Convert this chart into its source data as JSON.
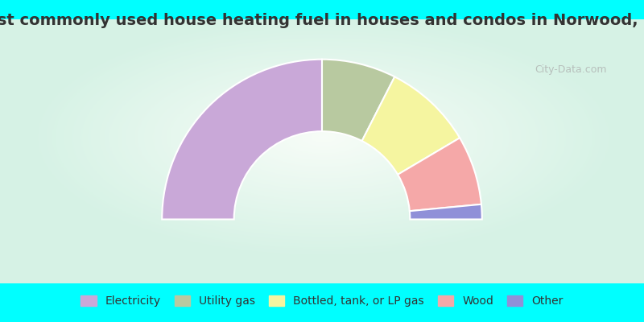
{
  "title": "Most commonly used house heating fuel in houses and condos in Norwood, MO",
  "segments": [
    {
      "label": "Electricity",
      "value": 50.0,
      "color": "#C9A8D8"
    },
    {
      "label": "Utility gas",
      "value": 15.0,
      "color": "#B8C9A0"
    },
    {
      "label": "Bottled, tank, or LP gas",
      "value": 18.0,
      "color": "#F5F5A0"
    },
    {
      "label": "Wood",
      "value": 14.0,
      "color": "#F5A8A8"
    },
    {
      "label": "Other",
      "value": 3.0,
      "color": "#9090D8"
    }
  ],
  "bg_top": "#00FFFF",
  "title_color": "#333333",
  "title_fontsize": 14,
  "legend_fontsize": 10,
  "watermark": "City-Data.com",
  "outer_r": 1.0,
  "inner_r": 0.55
}
